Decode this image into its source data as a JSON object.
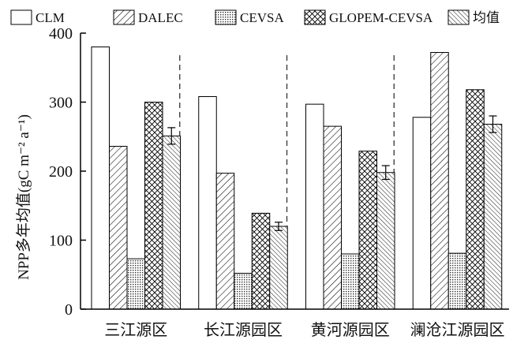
{
  "chart_data": {
    "type": "bar",
    "categories": [
      "三江源区",
      "长江源园区",
      "黄河源园区",
      "澜沧江源园区"
    ],
    "ylabel": "NPP多年均值(gC m⁻² a⁻¹)",
    "ylim": [
      0,
      400
    ],
    "yticks": [
      0,
      100,
      200,
      300,
      400
    ],
    "grid": false,
    "legend_position": "top",
    "series": [
      {
        "name": "CLM",
        "values": [
          380,
          308,
          297,
          278
        ],
        "pattern": "blank"
      },
      {
        "name": "DALEC",
        "values": [
          236,
          197,
          265,
          372
        ],
        "pattern": "diag-sparse"
      },
      {
        "name": "CEVSA",
        "values": [
          73,
          52,
          80,
          81
        ],
        "pattern": "dots"
      },
      {
        "name": "GLOPEM-CEVSA",
        "values": [
          300,
          139,
          229,
          318
        ],
        "pattern": "cross"
      },
      {
        "name": "均值",
        "values": [
          251,
          120,
          198,
          268
        ],
        "errors": [
          12,
          6,
          10,
          12
        ],
        "pattern": "diag-dense"
      }
    ]
  }
}
